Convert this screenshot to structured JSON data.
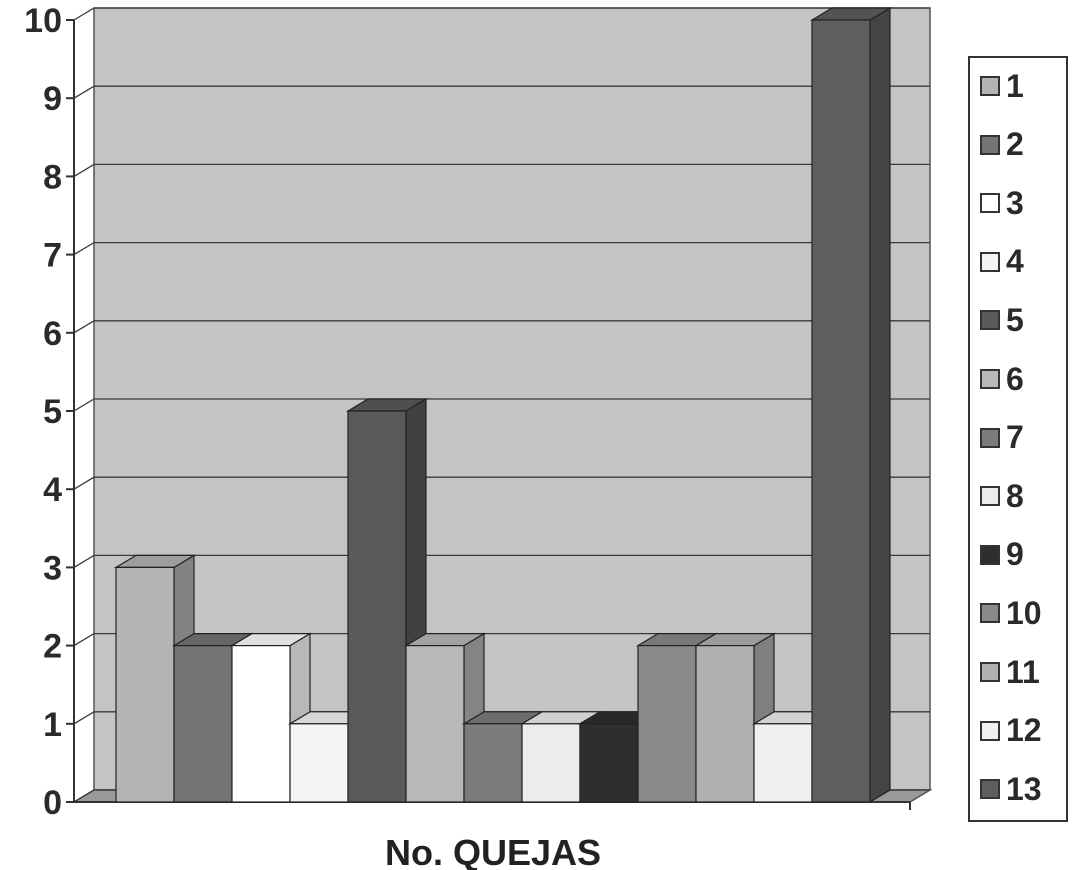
{
  "chart_data": {
    "type": "bar",
    "title": "",
    "xlabel": "No. QUEJAS",
    "ylabel": "",
    "ylim": [
      0,
      10
    ],
    "yticks": [
      0,
      1,
      2,
      3,
      4,
      5,
      6,
      7,
      8,
      9,
      10
    ],
    "grid": true,
    "legend_position": "right",
    "series": [
      {
        "name": "1",
        "value": 3,
        "color": "#b4b4b4"
      },
      {
        "name": "2",
        "value": 2,
        "color": "#747474"
      },
      {
        "name": "3",
        "value": 2,
        "color": "#ffffff"
      },
      {
        "name": "4",
        "value": 1,
        "color": "#f4f4f4"
      },
      {
        "name": "5",
        "value": 5,
        "color": "#5a5a5a"
      },
      {
        "name": "6",
        "value": 2,
        "color": "#b8b8b8"
      },
      {
        "name": "7",
        "value": 1,
        "color": "#7c7c7c"
      },
      {
        "name": "8",
        "value": 1,
        "color": "#ececec"
      },
      {
        "name": "9",
        "value": 1,
        "color": "#2e2e2e"
      },
      {
        "name": "10",
        "value": 2,
        "color": "#8a8a8a"
      },
      {
        "name": "11",
        "value": 2,
        "color": "#b0b0b0"
      },
      {
        "name": "12",
        "value": 1,
        "color": "#f0f0f0"
      },
      {
        "name": "13",
        "value": 10,
        "color": "#5e5e5e"
      }
    ]
  }
}
